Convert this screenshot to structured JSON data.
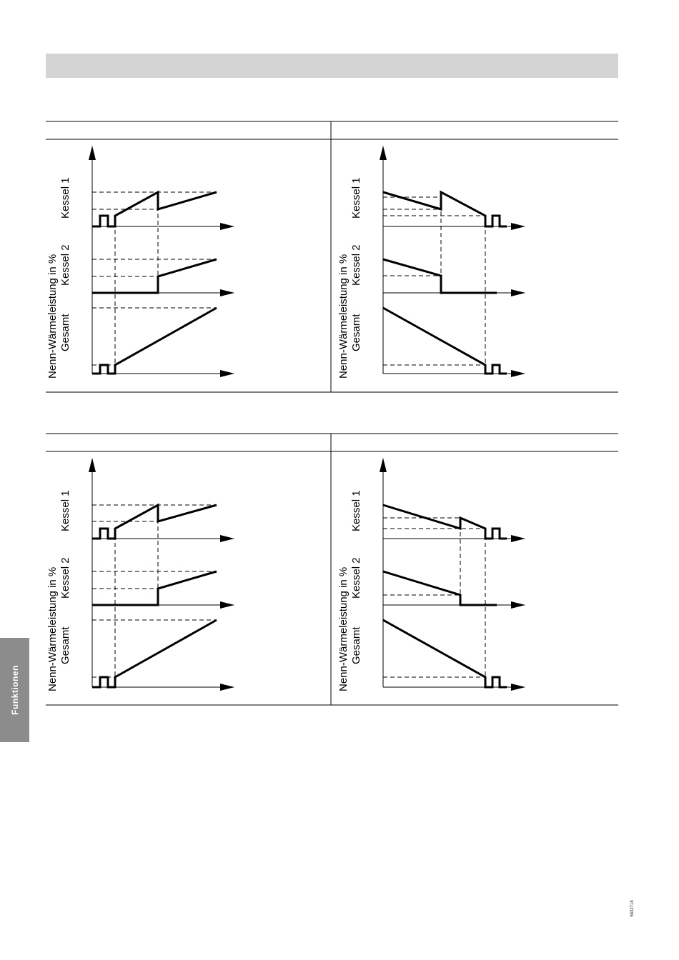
{
  "labels": {
    "y_axis": "Nenn-Wärmeleistung in %",
    "kessel1": "Kessel 1",
    "kessel2": "Kessel 2",
    "gesamt": "Gesamt"
  },
  "side_tab": "Funktionen",
  "doc_code": "5832718"
}
